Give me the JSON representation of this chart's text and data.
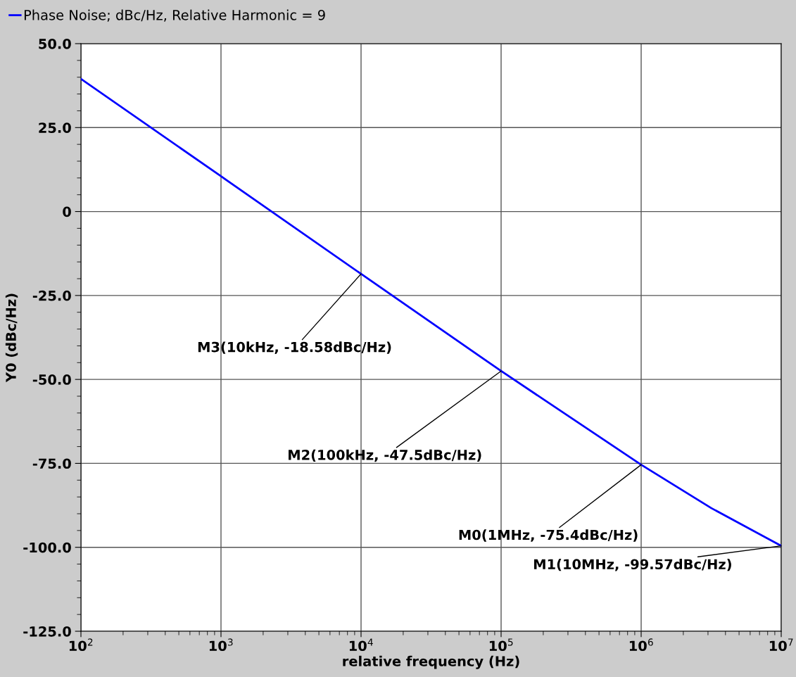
{
  "chart_data": {
    "type": "line",
    "xlabel": "relative frequency (Hz)",
    "ylabel": "Y0 (dBc/Hz)",
    "log": "x",
    "grid": true,
    "legend": "top left",
    "marker": "none",
    "line_style": "solid",
    "x": [
      100,
      1000,
      10000,
      100000,
      1000000,
      3160000,
      10000000
    ],
    "series": [
      {
        "name": "Phase Noise; dBc/Hz, Relative Harmonic = 9",
        "color": "#0000ff",
        "values": [
          39.5,
          10.5,
          -18.58,
          -47.5,
          -75.4,
          -88.3,
          -99.57
        ]
      }
    ],
    "xlim": [
      100,
      10000000
    ],
    "ylim": [
      -125,
      50
    ],
    "xticks": [
      {
        "value": 100,
        "label": "10$^{2}$"
      },
      {
        "value": 1000,
        "label": "10$^{3}$"
      },
      {
        "value": 10000,
        "label": "10$^{4}$"
      },
      {
        "value": 100000,
        "label": "10$^{5}$"
      },
      {
        "value": 1000000,
        "label": "10$^{6}$"
      },
      {
        "value": 10000000,
        "label": "10$^{7}$"
      }
    ],
    "yticks": [
      {
        "value": 50,
        "label": "50.0"
      },
      {
        "value": 25,
        "label": "25.0"
      },
      0,
      {
        "value": -25,
        "label": "-25.0"
      },
      {
        "value": -50,
        "label": "-50.0"
      },
      {
        "value": -75,
        "label": "-75.0"
      },
      {
        "value": -100,
        "label": "-100.0"
      },
      {
        "value": -125,
        "label": "-125.0"
      }
    ],
    "annotations": [
      {
        "text": "M3(10kHz, -18.58dBc/Hz)",
        "x": 10000,
        "y": -18.58
      },
      {
        "text": "M2(100kHz, -47.5dBc/Hz)",
        "x": 100000,
        "y": -47.5
      },
      {
        "text": "M0(1MHz, -75.4dBc/Hz)",
        "x": 1000000,
        "y": -75.4
      },
      {
        "text": "M1(10MHz, -99.57dBc/Hz)",
        "x": 10000000,
        "y": -99.57
      }
    ]
  }
}
